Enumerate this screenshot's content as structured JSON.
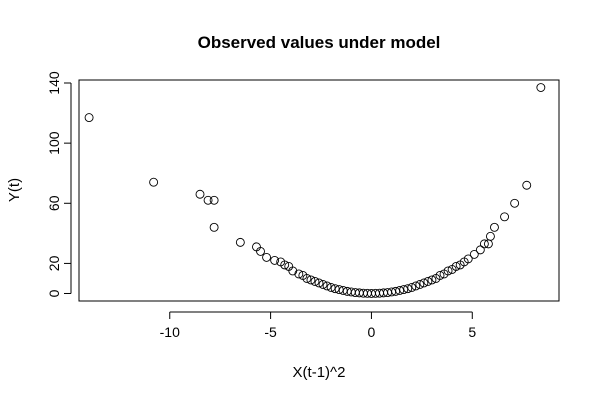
{
  "chart_data": {
    "type": "scatter",
    "title": "Observed values under model",
    "xlabel": "X(t-1)^2",
    "ylabel": "Y(t)",
    "xlim": [
      -14.5,
      9.3
    ],
    "ylim": [
      -5,
      142
    ],
    "x_ticks": [
      -10,
      -5,
      0,
      5
    ],
    "x_tick_labels": [
      "-10",
      "-5",
      "0",
      "5"
    ],
    "y_ticks": [
      0,
      20,
      60,
      100,
      140
    ],
    "y_tick_labels": [
      "0",
      "20",
      "60",
      "100",
      "140"
    ],
    "grid": false,
    "legend": "none",
    "marker": "open-circle",
    "series": [
      {
        "points": [
          [
            -14.0,
            117
          ],
          [
            -10.8,
            74
          ],
          [
            -8.5,
            66
          ],
          [
            -8.1,
            62
          ],
          [
            -7.8,
            62
          ],
          [
            -7.8,
            44
          ],
          [
            -6.5,
            34
          ],
          [
            -5.7,
            31
          ],
          [
            -5.5,
            28
          ],
          [
            -5.2,
            24
          ],
          [
            -4.8,
            22
          ],
          [
            -4.5,
            21
          ],
          [
            -4.3,
            19
          ],
          [
            -4.1,
            18
          ],
          [
            -3.9,
            15
          ],
          [
            -3.6,
            13
          ],
          [
            -3.4,
            12
          ],
          [
            -3.2,
            10
          ],
          [
            -3.0,
            9
          ],
          [
            -2.8,
            8
          ],
          [
            -2.6,
            7
          ],
          [
            -2.4,
            6
          ],
          [
            -2.2,
            5
          ],
          [
            -2.0,
            4
          ],
          [
            -1.8,
            3.2
          ],
          [
            -1.6,
            2.6
          ],
          [
            -1.4,
            2.0
          ],
          [
            -1.2,
            1.4
          ],
          [
            -1.0,
            1.0
          ],
          [
            -0.8,
            0.6
          ],
          [
            -0.6,
            0.4
          ],
          [
            -0.4,
            0.2
          ],
          [
            -0.2,
            0.1
          ],
          [
            0.0,
            0
          ],
          [
            0.2,
            0.1
          ],
          [
            0.4,
            0.2
          ],
          [
            0.6,
            0.4
          ],
          [
            0.8,
            0.6
          ],
          [
            1.0,
            1.0
          ],
          [
            1.2,
            1.4
          ],
          [
            1.4,
            2.0
          ],
          [
            1.6,
            2.6
          ],
          [
            1.8,
            3.2
          ],
          [
            2.0,
            4
          ],
          [
            2.2,
            5
          ],
          [
            2.4,
            6
          ],
          [
            2.6,
            7
          ],
          [
            2.8,
            8
          ],
          [
            3.0,
            9
          ],
          [
            3.2,
            10
          ],
          [
            3.4,
            12
          ],
          [
            3.6,
            13
          ],
          [
            3.8,
            15
          ],
          [
            4.0,
            16
          ],
          [
            4.2,
            18
          ],
          [
            4.4,
            19
          ],
          [
            4.6,
            21
          ],
          [
            4.8,
            23
          ],
          [
            5.1,
            26
          ],
          [
            5.4,
            29
          ],
          [
            5.6,
            33
          ],
          [
            5.8,
            33
          ],
          [
            5.9,
            38
          ],
          [
            6.1,
            44
          ],
          [
            6.6,
            51
          ],
          [
            7.1,
            60
          ],
          [
            7.7,
            72
          ],
          [
            8.4,
            137
          ]
        ]
      }
    ]
  }
}
